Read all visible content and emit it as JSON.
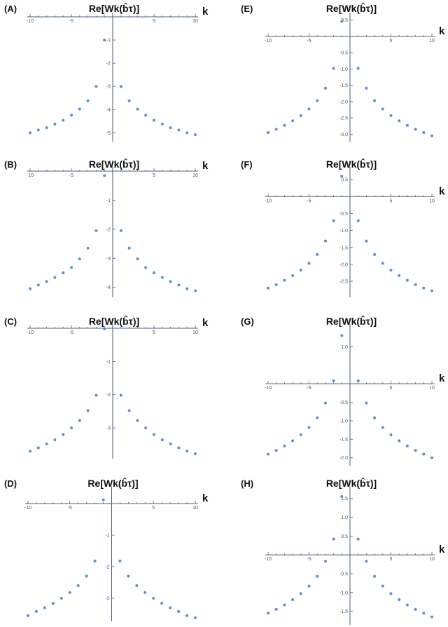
{
  "chart_data": [
    {
      "label": "(A)",
      "type": "scatter",
      "title": "Re[Wk(b̂τ)]",
      "xlabel": "k",
      "xlim": [
        -10,
        10
      ],
      "ylim": [
        -5.2,
        0
      ],
      "xticks": [
        -10,
        -5,
        5,
        10
      ],
      "xtick_labels": [
        "-10",
        "-5",
        "5",
        "10"
      ],
      "yticks": [
        -1,
        -2,
        -3,
        -4,
        -5
      ],
      "ytick_labels": [
        "-1",
        "-2",
        "-3",
        "-4",
        "-5"
      ],
      "x": [
        -10,
        -9,
        -8,
        -7,
        -6,
        -5,
        -4,
        -3,
        -2,
        -1,
        1,
        2,
        3,
        4,
        5,
        6,
        7,
        8,
        9,
        10
      ],
      "y": [
        -5.0,
        -4.88,
        -4.78,
        -4.62,
        -4.46,
        -4.24,
        -3.98,
        -3.62,
        -3.0,
        -1.0,
        -3.0,
        -3.62,
        -3.98,
        -4.24,
        -4.46,
        -4.62,
        -4.78,
        -4.88,
        -5.0,
        -5.08
      ]
    },
    {
      "label": "(B)",
      "type": "scatter",
      "title": "Re[Wk(b̂τ)]",
      "xlabel": "k",
      "xlim": [
        -10,
        10
      ],
      "ylim": [
        -4.2,
        0
      ],
      "xticks": [
        -10,
        -5,
        5,
        10
      ],
      "xtick_labels": [
        "-10",
        "-5",
        "5",
        "10"
      ],
      "yticks": [
        -1,
        -2,
        -3,
        -4
      ],
      "ytick_labels": [
        "-1",
        "-2",
        "-3",
        "-4"
      ],
      "x": [
        -10,
        -9,
        -8,
        -7,
        -6,
        -5,
        -4,
        -3,
        -2,
        -1,
        1,
        2,
        3,
        4,
        5,
        6,
        7,
        8,
        9,
        10
      ],
      "y": [
        -4.05,
        -3.92,
        -3.8,
        -3.66,
        -3.5,
        -3.32,
        -3.02,
        -2.65,
        -2.05,
        -0.15,
        -2.05,
        -2.65,
        -3.02,
        -3.32,
        -3.5,
        -3.66,
        -3.8,
        -3.92,
        -4.05,
        -4.12
      ]
    },
    {
      "label": "(C)",
      "type": "scatter",
      "title": "Re[Wk(b̂τ)]",
      "xlabel": "k",
      "xlim": [
        -10,
        10
      ],
      "ylim": [
        -3.8,
        0
      ],
      "xticks": [
        -10,
        -5,
        5,
        10
      ],
      "xtick_labels": [
        "-10",
        "-5",
        "5",
        "10"
      ],
      "yticks": [
        -1,
        -2,
        -3
      ],
      "ytick_labels": [
        "-1",
        "-2",
        "-3"
      ],
      "x": [
        -10,
        -9,
        -8,
        -7,
        -6,
        -5,
        -4,
        -3,
        -2,
        -1,
        1,
        2,
        3,
        4,
        5,
        6,
        7,
        8,
        9,
        10
      ],
      "y": [
        -3.7,
        -3.6,
        -3.48,
        -3.36,
        -3.2,
        -3.0,
        -2.78,
        -2.48,
        -2.02,
        -0.02,
        -2.02,
        -2.48,
        -2.78,
        -3.0,
        -3.2,
        -3.36,
        -3.48,
        -3.6,
        -3.7,
        -3.78
      ]
    },
    {
      "label": "(D)",
      "type": "scatter",
      "title": "Re[Wk(b̂τ)]",
      "xlabel": "k",
      "xlim": [
        -10,
        10
      ],
      "ylim": [
        -3.6,
        0.4
      ],
      "xticks": [
        -10,
        -5,
        5,
        10
      ],
      "xtick_labels": [
        "-10",
        "-5",
        "5",
        "10"
      ],
      "yticks": [
        -1,
        -2,
        -3
      ],
      "ytick_labels": [
        "-1",
        "-2",
        "-3"
      ],
      "x": [
        -10,
        -9,
        -8,
        -7,
        -6,
        -5,
        -4,
        -3,
        -2,
        -1,
        1,
        2,
        3,
        4,
        5,
        6,
        7,
        8,
        9,
        10
      ],
      "y": [
        -3.55,
        -3.42,
        -3.3,
        -3.16,
        -3.0,
        -2.82,
        -2.6,
        -2.3,
        -1.82,
        0.12,
        -1.82,
        -2.3,
        -2.6,
        -2.82,
        -3.0,
        -3.16,
        -3.3,
        -3.42,
        -3.55,
        -3.62
      ]
    },
    {
      "label": "(E)",
      "type": "scatter",
      "title": "Re[Wk(b̂τ)]",
      "xlabel": "k",
      "xlim": [
        -10,
        10
      ],
      "ylim": [
        -3.1,
        0.6
      ],
      "xticks": [
        -10,
        -5,
        5,
        10
      ],
      "xtick_labels": [
        "-10",
        "-5",
        "5",
        "10"
      ],
      "yticks": [
        0.5,
        -0.5,
        -1.0,
        -1.5,
        -2.0,
        -2.5,
        -3.0
      ],
      "ytick_labels": [
        "0.5",
        "-0.5",
        "-1.0",
        "-1.5",
        "-2.0",
        "-2.5",
        "-3.0"
      ],
      "x": [
        -10,
        -9,
        -8,
        -7,
        -6,
        -5,
        -4,
        -3,
        -2,
        -1,
        1,
        2,
        3,
        4,
        5,
        6,
        7,
        8,
        9,
        10
      ],
      "y": [
        -2.95,
        -2.85,
        -2.73,
        -2.59,
        -2.43,
        -2.23,
        -1.97,
        -1.59,
        -0.98,
        0.46,
        -0.98,
        -1.59,
        -1.97,
        -2.23,
        -2.43,
        -2.59,
        -2.73,
        -2.85,
        -2.95,
        -3.05
      ]
    },
    {
      "label": "(F)",
      "type": "scatter",
      "title": "Re[Wk(b̂τ)]",
      "xlabel": "k",
      "xlim": [
        -10,
        10
      ],
      "ylim": [
        -2.85,
        0.75
      ],
      "xticks": [
        -10,
        -5,
        5,
        10
      ],
      "xtick_labels": [
        "-10",
        "-5",
        "5",
        "10"
      ],
      "yticks": [
        0.5,
        -0.5,
        -1.0,
        -1.5,
        -2.0,
        -2.5
      ],
      "ytick_labels": [
        "0.5",
        "-0.5",
        "-1.0",
        "-1.5",
        "-2.0",
        "-2.5"
      ],
      "x": [
        -10,
        -9,
        -8,
        -7,
        -6,
        -5,
        -4,
        -3,
        -2,
        -1,
        1,
        2,
        3,
        4,
        5,
        6,
        7,
        8,
        9,
        10
      ],
      "y": [
        -2.7,
        -2.6,
        -2.47,
        -2.33,
        -2.17,
        -1.97,
        -1.71,
        -1.31,
        -0.71,
        0.6,
        -0.71,
        -1.31,
        -1.71,
        -1.97,
        -2.17,
        -2.33,
        -2.47,
        -2.6,
        -2.7,
        -2.78
      ]
    },
    {
      "label": "(G)",
      "type": "scatter",
      "title": "Re[Wk(b̂τ)]",
      "xlabel": "k",
      "xlim": [
        -10,
        10
      ],
      "ylim": [
        -2.1,
        1.5
      ],
      "xticks": [
        -10,
        -5,
        5,
        10
      ],
      "xtick_labels": [
        "-10",
        "-5",
        "5",
        "10"
      ],
      "yticks": [
        1.0,
        -0.5,
        -1.0,
        -1.5,
        -2.0
      ],
      "ytick_labels": [
        "1.0",
        "-0.5",
        "-1.0",
        "-1.5",
        "-2.0"
      ],
      "x": [
        -10,
        -9,
        -8,
        -7,
        -6,
        -5,
        -4,
        -3,
        -2,
        -1,
        1,
        2,
        3,
        4,
        5,
        6,
        7,
        8,
        9,
        10
      ],
      "y": [
        -1.9,
        -1.8,
        -1.68,
        -1.54,
        -1.38,
        -1.18,
        -0.92,
        -0.52,
        0.08,
        1.3,
        0.08,
        -0.52,
        -0.92,
        -1.18,
        -1.38,
        -1.54,
        -1.68,
        -1.8,
        -1.9,
        -2.0
      ]
    },
    {
      "label": "(H)",
      "type": "scatter",
      "title": "Re[Wk(b̂τ)]",
      "xlabel": "k",
      "xlim": [
        -10,
        10
      ],
      "ylim": [
        -1.75,
        1.7
      ],
      "xticks": [
        -10,
        -5,
        5,
        10
      ],
      "xtick_labels": [
        "-10",
        "-5",
        "5",
        "10"
      ],
      "yticks": [
        1.5,
        1.0,
        0.5,
        -0.5,
        -1.0,
        -1.5
      ],
      "ytick_labels": [
        "1.5",
        "1.0",
        "0.5",
        "-0.5",
        "-1.0",
        "-1.5"
      ],
      "x": [
        -10,
        -9,
        -8,
        -7,
        -6,
        -5,
        -4,
        -3,
        -2,
        -1,
        1,
        2,
        3,
        4,
        5,
        6,
        7,
        8,
        9,
        10
      ],
      "y": [
        -1.55,
        -1.45,
        -1.33,
        -1.19,
        -1.03,
        -0.83,
        -0.57,
        -0.17,
        0.42,
        1.55,
        0.42,
        -0.17,
        -0.57,
        -0.83,
        -1.03,
        -1.19,
        -1.33,
        -1.45,
        -1.55,
        -1.65
      ]
    }
  ]
}
